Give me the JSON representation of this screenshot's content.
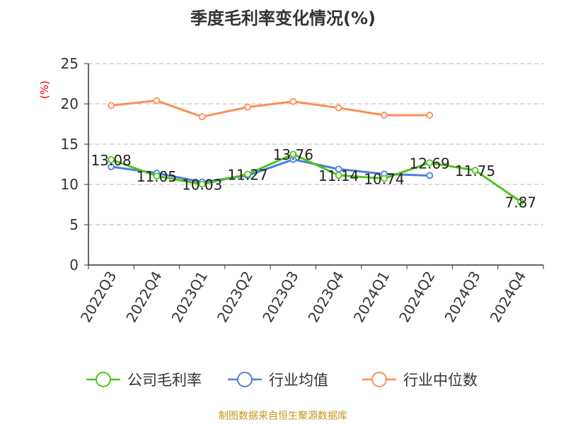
{
  "chart_data": {
    "type": "line",
    "title": "季度毛利率变化情况(%)",
    "ylabel": "(%)",
    "ylim": [
      0,
      25
    ],
    "yticks": [
      0,
      5,
      10,
      15,
      20,
      25
    ],
    "grid": true,
    "legend_position": "bottom",
    "categories": [
      "2022Q3",
      "2022Q4",
      "2023Q1",
      "2023Q2",
      "2023Q3",
      "2023Q4",
      "2024Q1",
      "2024Q2",
      "2024Q3",
      "2024Q4"
    ],
    "series": [
      {
        "name": "公司毛利率",
        "color": "#52c41a",
        "values": [
          13.08,
          11.05,
          10.03,
          11.27,
          13.76,
          11.14,
          10.74,
          12.69,
          11.75,
          7.87
        ],
        "labels": [
          "13.08",
          "11.05",
          "10.03",
          "11.27",
          "13.76",
          "11.14",
          "10.74",
          "12.69",
          "11.75",
          "7.87"
        ]
      },
      {
        "name": "行业均值",
        "color": "#4a7fe0",
        "values": [
          12.2,
          11.4,
          10.3,
          11.1,
          13.1,
          11.9,
          11.3,
          11.1,
          null,
          null
        ]
      },
      {
        "name": "行业中位数",
        "color": "#ff8c55",
        "values": [
          19.8,
          20.4,
          18.4,
          19.6,
          20.3,
          19.5,
          18.6,
          18.6,
          null,
          null
        ]
      }
    ]
  },
  "source": "制图数据来自恒生聚源数据库"
}
